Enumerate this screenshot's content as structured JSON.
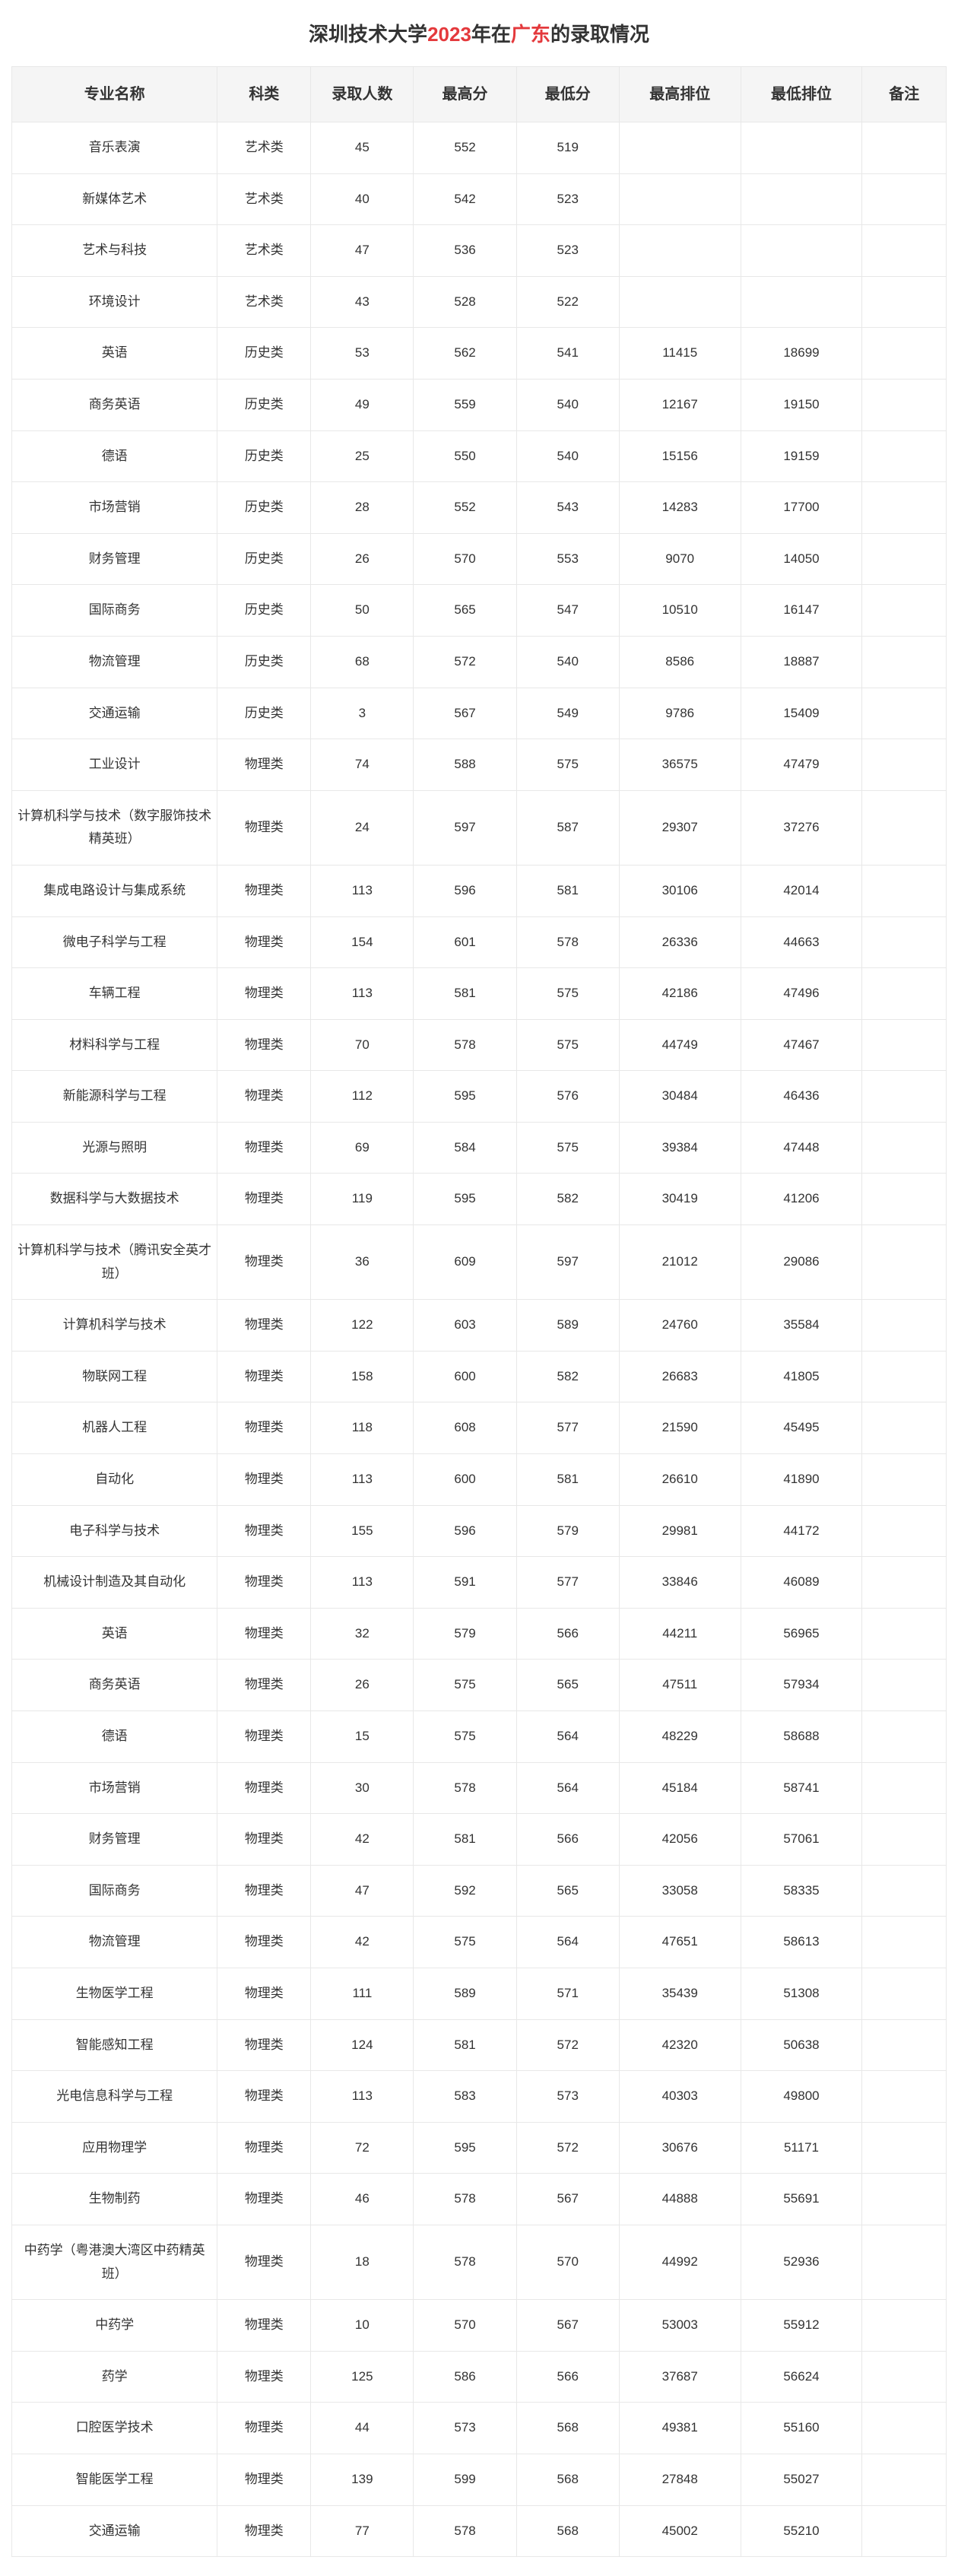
{
  "title_parts": {
    "p1": "深圳技术大学",
    "year": "2023",
    "p2": "年在",
    "prov": "广东",
    "p3": "的录取情况"
  },
  "columns": [
    "专业名称",
    "科类",
    "录取人数",
    "最高分",
    "最低分",
    "最高排位",
    "最低排位",
    "备注"
  ],
  "rows": [
    [
      "音乐表演",
      "艺术类",
      "45",
      "552",
      "519",
      "",
      "",
      ""
    ],
    [
      "新媒体艺术",
      "艺术类",
      "40",
      "542",
      "523",
      "",
      "",
      ""
    ],
    [
      "艺术与科技",
      "艺术类",
      "47",
      "536",
      "523",
      "",
      "",
      ""
    ],
    [
      "环境设计",
      "艺术类",
      "43",
      "528",
      "522",
      "",
      "",
      ""
    ],
    [
      "英语",
      "历史类",
      "53",
      "562",
      "541",
      "11415",
      "18699",
      ""
    ],
    [
      "商务英语",
      "历史类",
      "49",
      "559",
      "540",
      "12167",
      "19150",
      ""
    ],
    [
      "德语",
      "历史类",
      "25",
      "550",
      "540",
      "15156",
      "19159",
      ""
    ],
    [
      "市场营销",
      "历史类",
      "28",
      "552",
      "543",
      "14283",
      "17700",
      ""
    ],
    [
      "财务管理",
      "历史类",
      "26",
      "570",
      "553",
      "9070",
      "14050",
      ""
    ],
    [
      "国际商务",
      "历史类",
      "50",
      "565",
      "547",
      "10510",
      "16147",
      ""
    ],
    [
      "物流管理",
      "历史类",
      "68",
      "572",
      "540",
      "8586",
      "18887",
      ""
    ],
    [
      "交通运输",
      "历史类",
      "3",
      "567",
      "549",
      "9786",
      "15409",
      ""
    ],
    [
      "工业设计",
      "物理类",
      "74",
      "588",
      "575",
      "36575",
      "47479",
      ""
    ],
    [
      "计算机科学与技术（数字服饰技术精英班）",
      "物理类",
      "24",
      "597",
      "587",
      "29307",
      "37276",
      ""
    ],
    [
      "集成电路设计与集成系统",
      "物理类",
      "113",
      "596",
      "581",
      "30106",
      "42014",
      ""
    ],
    [
      "微电子科学与工程",
      "物理类",
      "154",
      "601",
      "578",
      "26336",
      "44663",
      ""
    ],
    [
      "车辆工程",
      "物理类",
      "113",
      "581",
      "575",
      "42186",
      "47496",
      ""
    ],
    [
      "材料科学与工程",
      "物理类",
      "70",
      "578",
      "575",
      "44749",
      "47467",
      ""
    ],
    [
      "新能源科学与工程",
      "物理类",
      "112",
      "595",
      "576",
      "30484",
      "46436",
      ""
    ],
    [
      "光源与照明",
      "物理类",
      "69",
      "584",
      "575",
      "39384",
      "47448",
      ""
    ],
    [
      "数据科学与大数据技术",
      "物理类",
      "119",
      "595",
      "582",
      "30419",
      "41206",
      ""
    ],
    [
      "计算机科学与技术（腾讯安全英才班）",
      "物理类",
      "36",
      "609",
      "597",
      "21012",
      "29086",
      ""
    ],
    [
      "计算机科学与技术",
      "物理类",
      "122",
      "603",
      "589",
      "24760",
      "35584",
      ""
    ],
    [
      "物联网工程",
      "物理类",
      "158",
      "600",
      "582",
      "26683",
      "41805",
      ""
    ],
    [
      "机器人工程",
      "物理类",
      "118",
      "608",
      "577",
      "21590",
      "45495",
      ""
    ],
    [
      "自动化",
      "物理类",
      "113",
      "600",
      "581",
      "26610",
      "41890",
      ""
    ],
    [
      "电子科学与技术",
      "物理类",
      "155",
      "596",
      "579",
      "29981",
      "44172",
      ""
    ],
    [
      "机械设计制造及其自动化",
      "物理类",
      "113",
      "591",
      "577",
      "33846",
      "46089",
      ""
    ],
    [
      "英语",
      "物理类",
      "32",
      "579",
      "566",
      "44211",
      "56965",
      ""
    ],
    [
      "商务英语",
      "物理类",
      "26",
      "575",
      "565",
      "47511",
      "57934",
      ""
    ],
    [
      "德语",
      "物理类",
      "15",
      "575",
      "564",
      "48229",
      "58688",
      ""
    ],
    [
      "市场营销",
      "物理类",
      "30",
      "578",
      "564",
      "45184",
      "58741",
      ""
    ],
    [
      "财务管理",
      "物理类",
      "42",
      "581",
      "566",
      "42056",
      "57061",
      ""
    ],
    [
      "国际商务",
      "物理类",
      "47",
      "592",
      "565",
      "33058",
      "58335",
      ""
    ],
    [
      "物流管理",
      "物理类",
      "42",
      "575",
      "564",
      "47651",
      "58613",
      ""
    ],
    [
      "生物医学工程",
      "物理类",
      "111",
      "589",
      "571",
      "35439",
      "51308",
      ""
    ],
    [
      "智能感知工程",
      "物理类",
      "124",
      "581",
      "572",
      "42320",
      "50638",
      ""
    ],
    [
      "光电信息科学与工程",
      "物理类",
      "113",
      "583",
      "573",
      "40303",
      "49800",
      ""
    ],
    [
      "应用物理学",
      "物理类",
      "72",
      "595",
      "572",
      "30676",
      "51171",
      ""
    ],
    [
      "生物制药",
      "物理类",
      "46",
      "578",
      "567",
      "44888",
      "55691",
      ""
    ],
    [
      "中药学（粤港澳大湾区中药精英班）",
      "物理类",
      "18",
      "578",
      "570",
      "44992",
      "52936",
      ""
    ],
    [
      "中药学",
      "物理类",
      "10",
      "570",
      "567",
      "53003",
      "55912",
      ""
    ],
    [
      "药学",
      "物理类",
      "125",
      "586",
      "566",
      "37687",
      "56624",
      ""
    ],
    [
      "口腔医学技术",
      "物理类",
      "44",
      "573",
      "568",
      "49381",
      "55160",
      ""
    ],
    [
      "智能医学工程",
      "物理类",
      "139",
      "599",
      "568",
      "27848",
      "55027",
      ""
    ],
    [
      "交通运输",
      "物理类",
      "77",
      "578",
      "568",
      "45002",
      "55210",
      ""
    ]
  ]
}
